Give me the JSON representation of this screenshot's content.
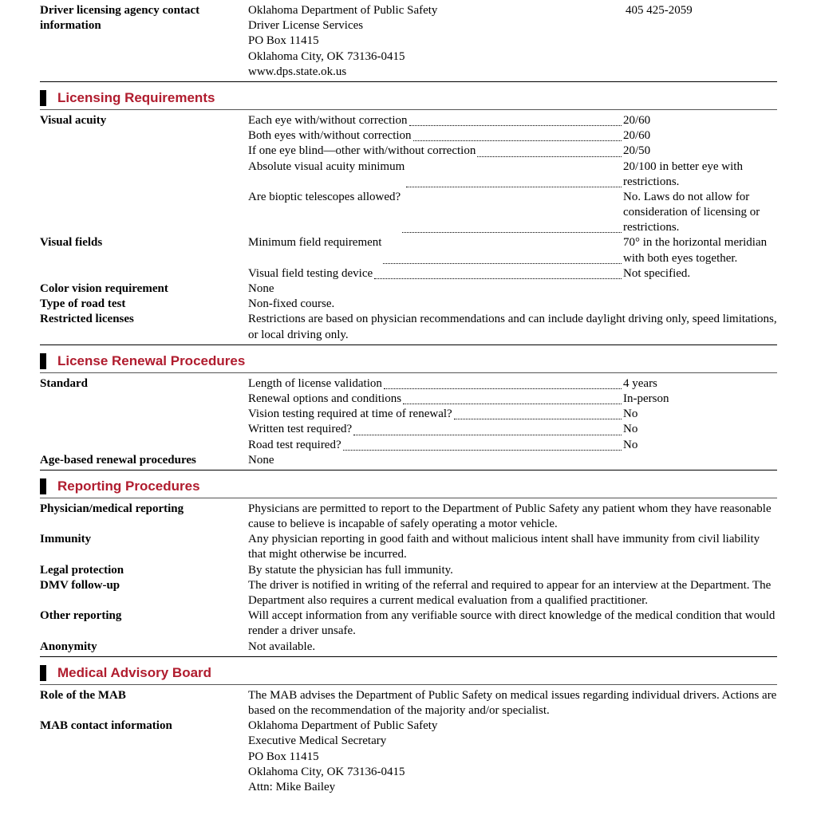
{
  "colors": {
    "accent": "#b01c2e",
    "text": "#000000",
    "bg": "#ffffff"
  },
  "contact": {
    "label": "Driver licensing agency contact information",
    "lines": [
      "Oklahoma Department of Public Safety",
      "Driver License Services",
      "PO Box 11415",
      "Oklahoma City, OK 73136-0415",
      "www.dps.state.ok.us"
    ],
    "phone": "405 425-2059"
  },
  "sections": {
    "licensing": "Licensing Requirements",
    "renewal": "License Renewal Procedures",
    "reporting": "Reporting Procedures",
    "mab": "Medical Advisory Board"
  },
  "acuity": {
    "label": "Visual acuity",
    "rows": [
      {
        "l": "Each eye with/without correction",
        "v": "20/60"
      },
      {
        "l": "Both eyes with/without correction",
        "v": "20/60"
      },
      {
        "l": "If one eye blind—other with/without correction",
        "v": "20/50"
      },
      {
        "l": "Absolute visual acuity minimum",
        "v": "20/100 in better eye with restrictions."
      },
      {
        "l": "Are bioptic telescopes allowed?",
        "v": "No. Laws do not allow for consideration of licensing or restrictions."
      }
    ]
  },
  "fields": {
    "label": "Visual fields",
    "rows": [
      {
        "l": "Minimum field requirement",
        "v": "70° in the horizontal meridian with both eyes together."
      },
      {
        "l": "Visual field testing device",
        "v": "Not specified."
      }
    ]
  },
  "color_vision": {
    "label": "Color vision requirement",
    "value": "None"
  },
  "road_test": {
    "label": "Type of road test",
    "value": "Non-fixed course."
  },
  "restricted": {
    "label": "Restricted licenses",
    "value": "Restrictions are based on physician recommendations and can include daylight driving only, speed limitations, or local driving only."
  },
  "standard": {
    "label": "Standard",
    "rows": [
      {
        "l": "Length of license validation",
        "v": "4 years"
      },
      {
        "l": "Renewal options and conditions",
        "v": "In-person"
      },
      {
        "l": "Vision testing required at time of renewal?",
        "v": "No"
      },
      {
        "l": "Written test required?",
        "v": "No"
      },
      {
        "l": "Road test required?",
        "v": "No"
      }
    ]
  },
  "age_based": {
    "label": "Age-based renewal procedures",
    "value": "None"
  },
  "reporting": {
    "physician": {
      "label": "Physician/medical reporting",
      "value": "Physicians are permitted to report to the Department of Public Safety any patient whom they have reasonable cause to believe is incapable of safely operating a motor vehicle."
    },
    "immunity": {
      "label": "Immunity",
      "value": "Any physician reporting in good faith and without malicious intent shall have immunity from civil liability that might otherwise be incurred."
    },
    "legal": {
      "label": "Legal protection",
      "value": "By statute the physician has full immunity."
    },
    "dmv": {
      "label": "DMV follow-up",
      "value": "The driver is notified in writing of the referral and required to appear for an interview at the Department. The Department also requires a current medical evaluation from a qualified practitioner."
    },
    "other": {
      "label": "Other reporting",
      "value": "Will accept information from any verifiable source with direct knowledge of the medical condition that would render a driver unsafe."
    },
    "anon": {
      "label": "Anonymity",
      "value": "Not available."
    }
  },
  "mab": {
    "role": {
      "label": "Role of the MAB",
      "value": "The MAB advises the Department of Public Safety on medical issues regarding individual drivers. Actions are based on the recommendation of the majority and/or specialist."
    },
    "contact": {
      "label": "MAB contact information",
      "lines": [
        "Oklahoma Department of Public Safety",
        "Executive Medical Secretary",
        "PO Box 11415",
        "Oklahoma City, OK 73136-0415",
        "Attn: Mike Bailey"
      ]
    }
  }
}
